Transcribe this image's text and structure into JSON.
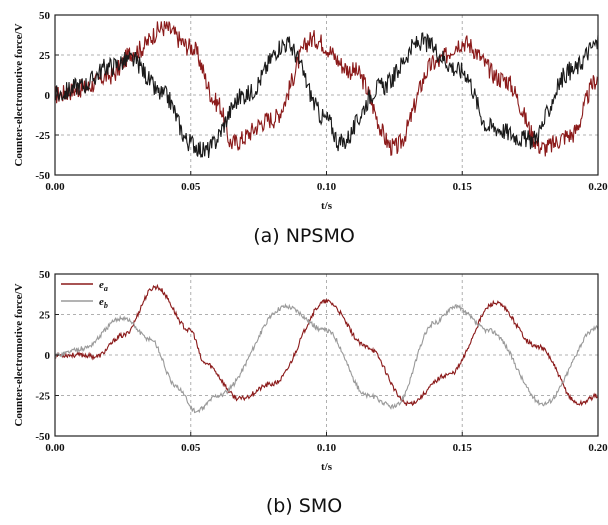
{
  "chart_data": [
    {
      "type": "line",
      "caption": "(a) NPSMO",
      "xlabel": "t/s",
      "ylabel": "Counter-electromotive force/V",
      "xlim": [
        0,
        0.2
      ],
      "ylim": [
        -50,
        50
      ],
      "xticks": [
        "0.00",
        "0.05",
        "0.10",
        "0.15",
        "0.20"
      ],
      "yticks": [
        "50",
        "25",
        "0",
        "-25",
        "-50"
      ],
      "grid": true,
      "legend": null,
      "noise": 6,
      "series": [
        {
          "color": "#8b1a1a",
          "x": [
            0,
            0.01,
            0.02,
            0.03,
            0.04,
            0.05,
            0.06,
            0.065,
            0.08,
            0.095,
            0.11,
            0.125,
            0.14,
            0.15,
            0.165,
            0.18,
            0.19,
            0.2
          ],
          "y": [
            0,
            4,
            12,
            28,
            42,
            30,
            -5,
            -30,
            -15,
            35,
            15,
            -33,
            20,
            33,
            10,
            -33,
            -25,
            10
          ]
        },
        {
          "color": "#1a1a1a",
          "x": [
            0,
            0.01,
            0.02,
            0.028,
            0.04,
            0.05,
            0.055,
            0.07,
            0.085,
            0.1,
            0.105,
            0.12,
            0.135,
            0.15,
            0.16,
            0.175,
            0.19,
            0.2
          ],
          "y": [
            0,
            6,
            18,
            22,
            0,
            -30,
            -35,
            0,
            32,
            -15,
            -30,
            5,
            33,
            15,
            -20,
            -28,
            15,
            32
          ]
        }
      ]
    },
    {
      "type": "line",
      "caption": "(b) SMO",
      "xlabel": "t/s",
      "ylabel": "Counter-electromotive force/V",
      "xlim": [
        0,
        0.2
      ],
      "ylim": [
        -50,
        50
      ],
      "xticks": [
        "0.00",
        "0.05",
        "0.10",
        "0.15",
        "0.20"
      ],
      "yticks": [
        "50",
        "25",
        "0",
        "-25",
        "-50"
      ],
      "grid": true,
      "legend": "top-left",
      "noise": 1.5,
      "series": [
        {
          "name": "e_a",
          "legend_label": "e",
          "legend_sub": "a",
          "color": "#8b1a1a",
          "x": [
            0,
            0.01,
            0.015,
            0.025,
            0.037,
            0.05,
            0.055,
            0.068,
            0.08,
            0.1,
            0.115,
            0.13,
            0.145,
            0.162,
            0.178,
            0.193,
            0.2
          ],
          "y": [
            0,
            0,
            -1,
            12,
            42,
            15,
            -5,
            -27,
            -18,
            33,
            5,
            -30,
            -12,
            32,
            5,
            -30,
            -25
          ]
        },
        {
          "name": "e_b",
          "legend_label": "e",
          "legend_sub": "b",
          "color": "#9a9a9a",
          "x": [
            0,
            0.01,
            0.025,
            0.035,
            0.045,
            0.052,
            0.06,
            0.085,
            0.1,
            0.115,
            0.125,
            0.14,
            0.147,
            0.16,
            0.18,
            0.2
          ],
          "y": [
            0,
            4,
            23,
            10,
            -20,
            -35,
            -25,
            30,
            15,
            -25,
            -32,
            20,
            30,
            15,
            -30,
            17
          ]
        }
      ]
    }
  ]
}
